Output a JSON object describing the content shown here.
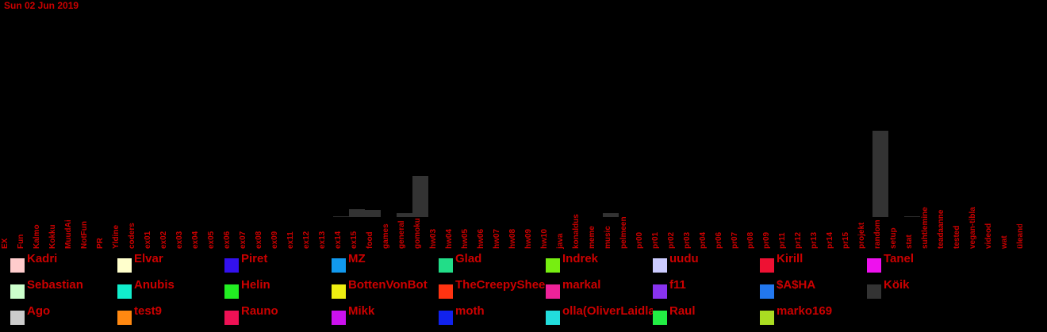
{
  "date": "Sun 02 Jun 2019",
  "colors": {
    "bar": "#333333",
    "label": "#cc0000"
  },
  "chart_data": {
    "type": "bar",
    "categories": [
      "EX",
      "Fun",
      "Kalmo",
      "Kokku",
      "MuudAi",
      "NotFun",
      "PR",
      "Yldine",
      "coders",
      "ex01",
      "ex02",
      "ex03",
      "ex04",
      "ex05",
      "ex06",
      "ex07",
      "ex08",
      "ex09",
      "ex11",
      "ex12",
      "ex13",
      "ex14",
      "ex15",
      "food",
      "games",
      "general",
      "gomoku",
      "hw03",
      "hw04",
      "hw05",
      "hw06",
      "hw07",
      "hw08",
      "hw09",
      "hw10",
      "java",
      "konaldus",
      "meme",
      "music",
      "pelmeen",
      "pr00",
      "pr01",
      "pr02",
      "pr03",
      "pr04",
      "pr06",
      "pr07",
      "pr08",
      "pr09",
      "pr11",
      "pr12",
      "pr13",
      "pr14",
      "pr15",
      "projekt",
      "random",
      "setup",
      "stat",
      "suhtlemine",
      "teadaanne",
      "tested",
      "vegan-tibla",
      "videod",
      "wat",
      "üleandmine"
    ],
    "values": [
      0,
      0,
      0,
      0,
      0,
      0,
      0,
      0,
      0,
      0,
      0,
      0,
      0,
      0,
      0,
      0,
      0,
      0,
      0,
      0,
      0,
      0.3,
      2,
      1.8,
      0,
      1,
      10.5,
      0,
      0,
      0,
      0,
      0,
      0,
      0,
      0,
      0,
      0,
      0,
      1.1,
      0,
      0,
      0,
      0,
      0,
      0,
      0,
      0,
      0,
      0,
      0,
      0,
      0,
      0,
      0,
      0,
      22,
      0,
      0.2,
      0,
      0,
      0,
      0,
      0,
      0,
      0
    ],
    "ylim": [
      0,
      22
    ]
  },
  "legend": [
    {
      "name": "Kadri",
      "color": "#ffcccc"
    },
    {
      "name": "Elvar",
      "color": "#ffffcc"
    },
    {
      "name": "Piret",
      "color": "#3311ee"
    },
    {
      "name": "MZ",
      "color": "#1199ee"
    },
    {
      "name": "Glad",
      "color": "#22dd88"
    },
    {
      "name": "Indrek",
      "color": "#77ee11"
    },
    {
      "name": "uudu",
      "color": "#ccccff"
    },
    {
      "name": "Kirill",
      "color": "#ee1133"
    },
    {
      "name": "Tanel",
      "color": "#ee11ee"
    },
    {
      "name": "Sebastian",
      "color": "#ccffcc"
    },
    {
      "name": "Anubis",
      "color": "#11eecc"
    },
    {
      "name": "Helin",
      "color": "#22ee22"
    },
    {
      "name": "BottenVonBot",
      "color": "#eeee11"
    },
    {
      "name": "TheCreepySheep",
      "color": "#ff3311"
    },
    {
      "name": "markal",
      "color": "#ee2299"
    },
    {
      "name": "f11",
      "color": "#8833ee"
    },
    {
      "name": "$A$HA",
      "color": "#2277ee"
    },
    {
      "name": "Köik",
      "color": "#333333"
    },
    {
      "name": "Ago",
      "color": "#cccccc"
    },
    {
      "name": "test9",
      "color": "#ff8811"
    },
    {
      "name": "Rauno",
      "color": "#ee1155"
    },
    {
      "name": "Mikk",
      "color": "#cc11ee"
    },
    {
      "name": "moth",
      "color": "#1122ee"
    },
    {
      "name": "olla(OliverLaidla)",
      "color": "#22dddd"
    },
    {
      "name": "Raul",
      "color": "#22ee44"
    },
    {
      "name": "marko169",
      "color": "#aadd22"
    }
  ]
}
